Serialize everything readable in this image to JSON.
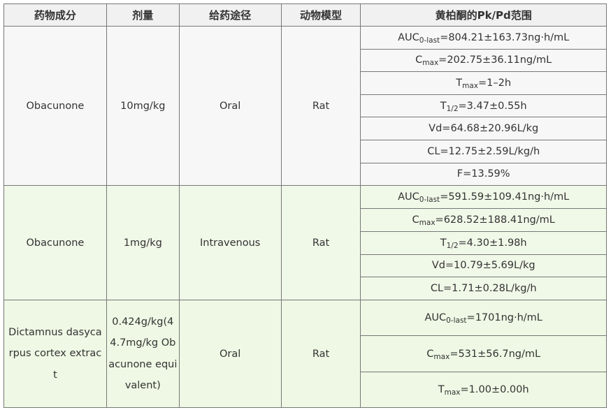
{
  "headers": [
    "药物成分",
    "剂量",
    "给药途径",
    "动物模型",
    "黄柏酮的Pk/Pd范围"
  ],
  "groups": [
    {
      "drug": "Obacunone",
      "dose": "10mg/kg",
      "route": "Oral",
      "model": "Rat",
      "params": [
        {
          "main": "AUC",
          "sub": "0-last",
          "rest": "=804.21±163.73ng·h/mL"
        },
        {
          "main": "C",
          "sub": "max",
          "rest": "=202.75±36.11ng/mL"
        },
        {
          "main": "T",
          "sub": "max",
          "rest": "=1–2h"
        },
        {
          "main": "T",
          "sub": "1/2",
          "rest": "=3.47±0.55h"
        },
        {
          "main": "Vd=64.68±20.96L/kg",
          "sub": "",
          "rest": ""
        },
        {
          "main": "CL=12.75±2.59L/kg/h",
          "sub": "",
          "rest": ""
        },
        {
          "main": "F=13.59%",
          "sub": "",
          "rest": ""
        }
      ]
    },
    {
      "drug": "Obacunone",
      "dose": "1mg/kg",
      "route": "Intravenous",
      "model": "Rat",
      "params": [
        {
          "main": "AUC",
          "sub": "0-last",
          "rest": "=591.59±109.41ng·h/mL"
        },
        {
          "main": "C",
          "sub": "max",
          "rest": "=628.52±188.41ng/mL"
        },
        {
          "main": "T",
          "sub": "1/2",
          "rest": "=4.30±1.98h"
        },
        {
          "main": "Vd=10.79±5.69L/kg",
          "sub": "",
          "rest": ""
        },
        {
          "main": "CL=1.71±0.28L/kg/h",
          "sub": "",
          "rest": ""
        }
      ]
    },
    {
      "drug": "Dictamnus dasycarpus cortex extract",
      "dose": "0.424g/kg(44.7mg/kg Obacunone equivalent)",
      "route": "Oral",
      "model": "Rat",
      "params": [
        {
          "main": "AUC",
          "sub": "0-last",
          "rest": "=1701ng·h/mL"
        },
        {
          "main": "C",
          "sub": "max",
          "rest": "=531±56.7ng/mL"
        },
        {
          "main": "T",
          "sub": "max",
          "rest": "=1.00±0.00h"
        }
      ]
    }
  ]
}
